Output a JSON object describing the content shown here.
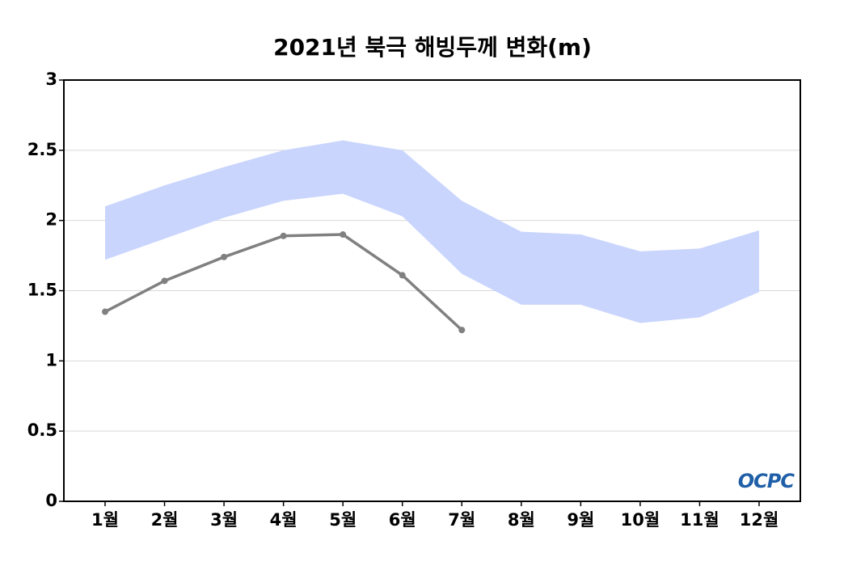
{
  "chart_data": {
    "type": "line",
    "title": "2021년 북극 해빙두께 변화(m)",
    "categories": [
      "1월",
      "2월",
      "3월",
      "4월",
      "5월",
      "6월",
      "7월",
      "8월",
      "9월",
      "10월",
      "11월",
      "12월"
    ],
    "series": [
      {
        "color": "#808080",
        "values": [
          1.35,
          1.57,
          1.74,
          1.89,
          1.9,
          1.61,
          1.22,
          null,
          null,
          null,
          null,
          null
        ]
      }
    ],
    "band": {
      "color": "#c9d5fd",
      "upper": [
        2.1,
        2.25,
        2.38,
        2.5,
        2.57,
        2.5,
        2.14,
        1.92,
        1.9,
        1.78,
        1.8,
        1.93
      ],
      "lower": [
        1.72,
        1.87,
        2.02,
        2.14,
        2.19,
        2.03,
        1.62,
        1.4,
        1.4,
        1.27,
        1.31,
        1.49
      ]
    },
    "ylim": [
      0,
      3
    ],
    "yticks": [
      0,
      0.5,
      1,
      1.5,
      2,
      2.5,
      3
    ],
    "grid": true,
    "logo": "OCPC"
  }
}
